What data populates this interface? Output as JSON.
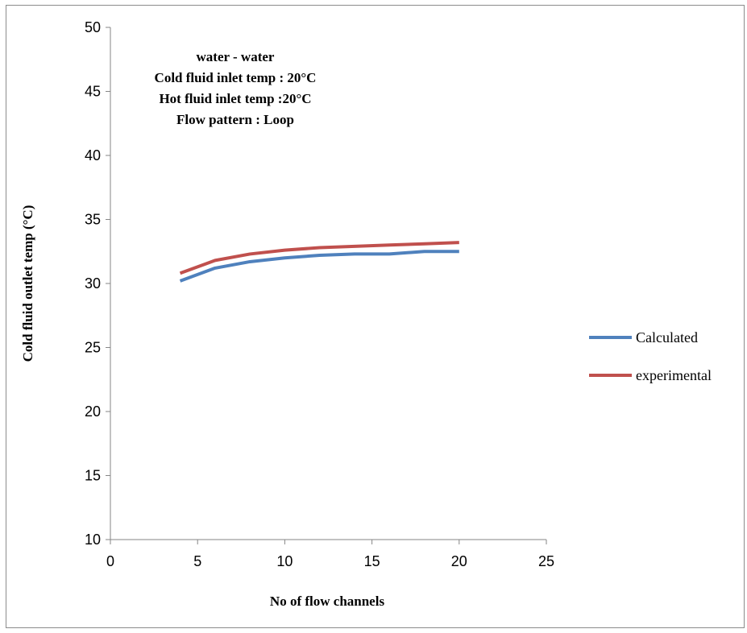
{
  "chart_data": {
    "type": "line",
    "title": "",
    "xlabel": "No of flow channels",
    "ylabel": "Cold fluid outlet temp (°C)",
    "xlim": [
      0,
      25
    ],
    "ylim": [
      10,
      50
    ],
    "xticks": [
      "0",
      "5",
      "10",
      "15",
      "20",
      "25"
    ],
    "yticks": [
      "10",
      "15",
      "20",
      "25",
      "30",
      "35",
      "40",
      "45",
      "50"
    ],
    "grid": false,
    "legend_position": "right",
    "annotations": [
      "water - water",
      "Cold fluid inlet temp : 20°C",
      "Hot fluid inlet temp :20°C",
      "Flow pattern : Loop"
    ],
    "x": [
      4,
      6,
      8,
      10,
      12,
      14,
      16,
      18,
      20
    ],
    "series": [
      {
        "name": "Calculated",
        "color": "#4f81bd",
        "values": [
          30.2,
          31.2,
          31.7,
          32.0,
          32.2,
          32.3,
          32.3,
          32.5,
          32.5
        ]
      },
      {
        "name": "experimental",
        "color": "#c0504d",
        "values": [
          30.8,
          31.8,
          32.3,
          32.6,
          32.8,
          32.9,
          33.0,
          33.1,
          33.2
        ]
      }
    ]
  }
}
